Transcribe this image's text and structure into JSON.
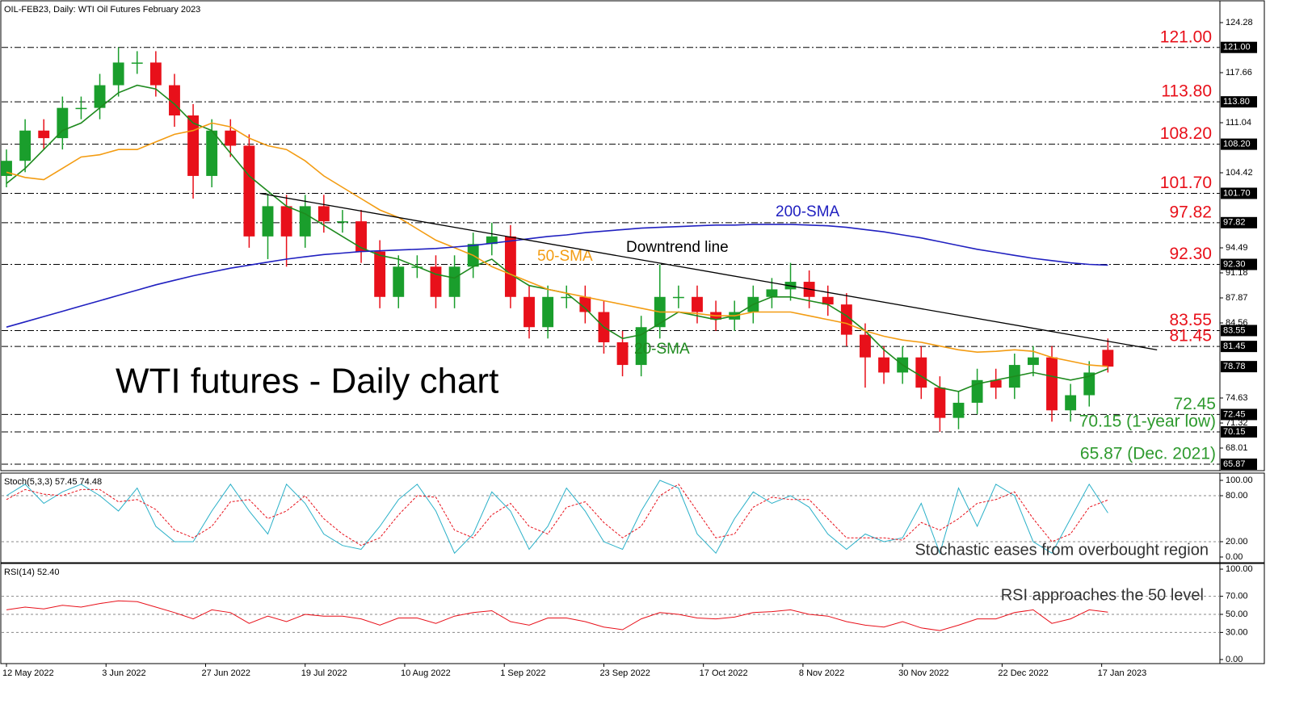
{
  "chart_data": [
    {
      "type": "candlestick",
      "title": "OIL-FEB23, Daily:  WTI Oil Futures February 2023",
      "annotation": "WTI futures - Daily chart",
      "xlim": [
        0,
        195
      ],
      "ylim": [
        65.02,
        126.95
      ],
      "yticks": [
        124.28,
        117.66,
        111.04,
        104.42,
        94.49,
        91.18,
        87.87,
        84.56,
        74.63,
        71.32,
        68.01
      ],
      "up_color": "#1a9e2c",
      "down_color": "#e8101a",
      "x": [
        0,
        3,
        6,
        9,
        12,
        15,
        18,
        21,
        24,
        27,
        30,
        33,
        36,
        39,
        42,
        45,
        48,
        51,
        54,
        57,
        60,
        63,
        66,
        69,
        72,
        75,
        78,
        81,
        84,
        87,
        90,
        93,
        96,
        99,
        102,
        105,
        108,
        111,
        114,
        117,
        120,
        123,
        126,
        129,
        132,
        135,
        138,
        141,
        144,
        147,
        150,
        153,
        156,
        159,
        162,
        165,
        168,
        171,
        174,
        177
      ],
      "open": [
        104,
        106,
        110,
        109,
        113,
        113,
        116,
        119,
        119,
        116,
        112,
        104,
        110,
        108,
        96,
        100,
        96,
        100,
        98,
        98,
        94,
        88,
        92,
        92,
        88,
        92,
        95,
        96,
        88,
        84,
        88,
        88,
        86,
        82,
        79,
        84,
        88,
        88,
        86,
        85,
        86,
        88,
        89,
        90,
        88,
        87,
        83,
        80,
        78,
        80,
        76,
        72,
        74,
        77,
        76,
        79,
        80,
        73,
        75,
        81
      ],
      "high": [
        107.5,
        111.5,
        111.5,
        114.5,
        114.5,
        117.5,
        121,
        120.5,
        120.5,
        117.5,
        113.5,
        111.5,
        111.5,
        109.5,
        101.7,
        101.5,
        101.5,
        101.5,
        99.5,
        99.5,
        95.5,
        93.5,
        93.5,
        93.5,
        93.5,
        96.5,
        97.82,
        97.5,
        89.5,
        89.5,
        89.5,
        89.5,
        87.5,
        83.5,
        85.5,
        92.3,
        89.5,
        89.5,
        87.5,
        87.5,
        89.5,
        90.5,
        92.5,
        91.5,
        89.5,
        88.5,
        84.5,
        81.5,
        81.5,
        81.5,
        77.5,
        75.5,
        78.5,
        78.5,
        80.5,
        81.5,
        81.5,
        76.5,
        79.5,
        82.5
      ],
      "low": [
        102.5,
        104.5,
        107.5,
        107.5,
        111.5,
        111.5,
        114.5,
        117.5,
        114.5,
        110.5,
        101,
        102.5,
        106.5,
        94.5,
        93,
        92,
        94.5,
        96.5,
        96.5,
        92.5,
        86.5,
        86.5,
        90.5,
        86.5,
        86.5,
        90.5,
        93.5,
        86.5,
        82.5,
        82.5,
        86.5,
        84.5,
        80.5,
        77.5,
        77.5,
        82.5,
        86.5,
        84.5,
        83.5,
        83.5,
        84.5,
        86.5,
        87.5,
        86.5,
        85.5,
        81.5,
        76,
        76.5,
        76.5,
        74.5,
        70.15,
        70.5,
        72.5,
        74.5,
        74.5,
        77.5,
        71.5,
        71.5,
        73.5,
        78
      ],
      "close": [
        106,
        110,
        109,
        113,
        113,
        116,
        119,
        119,
        116,
        112,
        104,
        110,
        108,
        96,
        100,
        96,
        100,
        98,
        98,
        94,
        88,
        92,
        92,
        88,
        92,
        95,
        96,
        88,
        84,
        88,
        88,
        86,
        82,
        79,
        84,
        88,
        88,
        86,
        85,
        86,
        88,
        89,
        90,
        88,
        87,
        83,
        80,
        78,
        80,
        76,
        72,
        74,
        77,
        76,
        79,
        80,
        73,
        75,
        78,
        78.78
      ],
      "series": [
        {
          "name": "20-SMA",
          "color": "#1e8a1e",
          "values": [
            103,
            105,
            107.5,
            110,
            111,
            113,
            115,
            116,
            115.5,
            113.5,
            111,
            110,
            107,
            104,
            102,
            100,
            99,
            97.5,
            96,
            94.5,
            93.5,
            93,
            92,
            91,
            90.5,
            92,
            93,
            91,
            89.5,
            89,
            88.5,
            86.5,
            84,
            82.5,
            83,
            84.5,
            86,
            85.5,
            85,
            85.5,
            87,
            88,
            88,
            87.5,
            87,
            85.5,
            83.5,
            81,
            79,
            77.5,
            76,
            75.5,
            76.5,
            77,
            77.5,
            78,
            77.5,
            77,
            77.5,
            78.5
          ]
        },
        {
          "name": "50-SMA",
          "color": "#f39c12",
          "values": [
            104.5,
            103.8,
            103.5,
            105,
            106.5,
            106.8,
            107.5,
            107.5,
            108.5,
            109.5,
            110,
            111,
            110.5,
            109,
            108,
            107.5,
            106,
            104,
            102.5,
            101,
            99.5,
            98.5,
            97,
            95.5,
            94.5,
            93.5,
            92,
            91,
            90,
            89,
            88.5,
            88,
            87.5,
            87,
            86.5,
            86,
            86,
            85.8,
            85.5,
            85.5,
            86,
            86,
            86,
            85.5,
            85,
            84.5,
            83.5,
            82.8,
            82.3,
            82,
            81.5,
            81,
            80.7,
            80.8,
            81,
            80.8,
            80,
            79.5,
            79,
            78.8
          ]
        },
        {
          "name": "200-SMA",
          "color": "#2020c0",
          "values": [
            84,
            84.7,
            85.4,
            86.1,
            86.8,
            87.5,
            88.2,
            88.9,
            89.6,
            90.2,
            90.8,
            91.3,
            91.8,
            92.2,
            92.6,
            93,
            93.3,
            93.6,
            93.8,
            94,
            94.1,
            94.2,
            94.3,
            94.4,
            94.6,
            94.8,
            95.1,
            95.4,
            95.7,
            96,
            96.2,
            96.5,
            96.7,
            96.9,
            97.1,
            97.2,
            97.3,
            97.4,
            97.5,
            97.5,
            97.6,
            97.6,
            97.6,
            97.5,
            97.4,
            97.2,
            96.9,
            96.6,
            96.2,
            95.8,
            95.3,
            94.8,
            94.3,
            93.9,
            93.5,
            93.1,
            92.8,
            92.5,
            92.3,
            92.2
          ]
        }
      ],
      "trendline": {
        "name": "Downtrend line",
        "color": "#000000",
        "x": [
          40.7,
          184.9
        ],
        "values": [
          101.7,
          81
        ]
      },
      "levels": [
        {
          "value": 121,
          "label": "121.00",
          "color": "#e8101a"
        },
        {
          "value": 113.8,
          "label": "113.80",
          "color": "#e8101a"
        },
        {
          "value": 108.2,
          "label": "108.20",
          "color": "#e8101a"
        },
        {
          "value": 101.7,
          "label": "101.70",
          "color": "#e8101a"
        },
        {
          "value": 97.82,
          "color": "#e8101a"
        },
        {
          "value": 92.3,
          "label": "92.30",
          "color": "#e8101a"
        },
        {
          "value": 83.55,
          "color": "#e8101a"
        },
        {
          "value": 81.45,
          "color": "#e8101a"
        },
        {
          "value": 72.45,
          "color": "#2e9a2e"
        },
        {
          "value": 70.15,
          "text": "70.15 (1-year low)",
          "color": "#2e9a2e"
        },
        {
          "value": 65.87,
          "text": "65.87 (Dec. 2021)",
          "color": "#2e9a2e"
        }
      ],
      "last_price": 78.78
    },
    {
      "type": "line",
      "title": "Stoch(5,3,3) 57.45 74.48",
      "annotation": "Stochastic eases from overbought region",
      "xlim": [
        0,
        195
      ],
      "ylim": [
        -7.4,
        107.4
      ],
      "yticks": [
        {
          "value": 100,
          "label": "100.00"
        },
        {
          "value": 80,
          "label": "80.00"
        },
        {
          "value": 20,
          "label": "20.00"
        },
        {
          "value": 0,
          "label": "0.00"
        }
      ],
      "levels": [
        80,
        20
      ],
      "x": [
        0,
        3,
        6,
        9,
        12,
        15,
        18,
        21,
        24,
        27,
        30,
        33,
        36,
        39,
        42,
        45,
        48,
        51,
        54,
        57,
        60,
        63,
        66,
        69,
        72,
        75,
        78,
        81,
        84,
        87,
        90,
        93,
        96,
        99,
        102,
        105,
        108,
        111,
        114,
        117,
        120,
        123,
        126,
        129,
        132,
        135,
        138,
        141,
        144,
        147,
        150,
        153,
        156,
        159,
        162,
        165,
        168,
        171,
        174,
        177
      ],
      "series": [
        {
          "color": "#2ab0c8",
          "values": [
            80,
            95,
            70,
            85,
            95,
            80,
            60,
            90,
            40,
            20,
            20,
            60,
            95,
            60,
            30,
            95,
            70,
            30,
            15,
            10,
            40,
            75,
            95,
            60,
            5,
            30,
            85,
            60,
            10,
            40,
            90,
            60,
            20,
            10,
            60,
            100,
            90,
            30,
            5,
            50,
            85,
            70,
            80,
            65,
            30,
            10,
            30,
            20,
            25,
            70,
            5,
            90,
            40,
            95,
            80,
            20,
            5,
            50,
            95,
            57.45
          ]
        },
        {
          "color": "#e8101a",
          "style": "dashed",
          "values": [
            75,
            88,
            82,
            80,
            88,
            88,
            72,
            75,
            62,
            35,
            25,
            40,
            72,
            75,
            50,
            60,
            80,
            50,
            30,
            15,
            25,
            55,
            80,
            78,
            35,
            25,
            55,
            70,
            40,
            30,
            65,
            72,
            45,
            25,
            40,
            80,
            95,
            60,
            25,
            30,
            65,
            78,
            75,
            75,
            50,
            25,
            25,
            25,
            22,
            45,
            35,
            50,
            70,
            75,
            85,
            50,
            20,
            30,
            65,
            74.48
          ]
        }
      ]
    },
    {
      "type": "line",
      "title": "RSI(14) 52.40",
      "annotation": "RSI approaches the 50 level",
      "xlim": [
        0,
        195
      ],
      "ylim": [
        -4.5,
        104.5
      ],
      "yticks": [
        {
          "value": 100,
          "label": "100.00"
        },
        {
          "value": 70,
          "label": "70.00"
        },
        {
          "value": 50,
          "label": "50.00"
        },
        {
          "value": 30,
          "label": "30.00"
        },
        {
          "value": 0,
          "label": "0.00"
        }
      ],
      "levels": [
        70,
        50,
        30
      ],
      "xticks": [
        {
          "value": 0,
          "label": "12 May 2022"
        },
        {
          "value": 16,
          "label": "3 Jun 2022"
        },
        {
          "value": 32,
          "label": "27 Jun 2022"
        },
        {
          "value": 48,
          "label": "19 Jul 2022"
        },
        {
          "value": 64,
          "label": "10 Aug 2022"
        },
        {
          "value": 80,
          "label": "1 Sep 2022"
        },
        {
          "value": 96,
          "label": "23 Sep 2022"
        },
        {
          "value": 112,
          "label": "17 Oct 2022"
        },
        {
          "value": 128,
          "label": "8 Nov 2022"
        },
        {
          "value": 144,
          "label": "30 Nov 2022"
        },
        {
          "value": 160,
          "label": "22 Dec 2022"
        },
        {
          "value": 176,
          "label": "17 Jan 2023"
        }
      ],
      "x": [
        0,
        3,
        6,
        9,
        12,
        15,
        18,
        21,
        24,
        27,
        30,
        33,
        36,
        39,
        42,
        45,
        48,
        51,
        54,
        57,
        60,
        63,
        66,
        69,
        72,
        75,
        78,
        81,
        84,
        87,
        90,
        93,
        96,
        99,
        102,
        105,
        108,
        111,
        114,
        117,
        120,
        123,
        126,
        129,
        132,
        135,
        138,
        141,
        144,
        147,
        150,
        153,
        156,
        159,
        162,
        165,
        168,
        171,
        174,
        177
      ],
      "series": [
        {
          "color": "#e8101a",
          "values": [
            55,
            58,
            56,
            60,
            58,
            62,
            65,
            64,
            58,
            52,
            45,
            55,
            52,
            40,
            48,
            42,
            50,
            48,
            48,
            45,
            38,
            46,
            46,
            40,
            48,
            52,
            54,
            42,
            38,
            46,
            46,
            42,
            36,
            33,
            45,
            52,
            50,
            46,
            45,
            47,
            52,
            53,
            55,
            50,
            48,
            42,
            38,
            36,
            42,
            35,
            32,
            38,
            45,
            45,
            52,
            55,
            40,
            45,
            55,
            52.4
          ]
        }
      ]
    }
  ]
}
